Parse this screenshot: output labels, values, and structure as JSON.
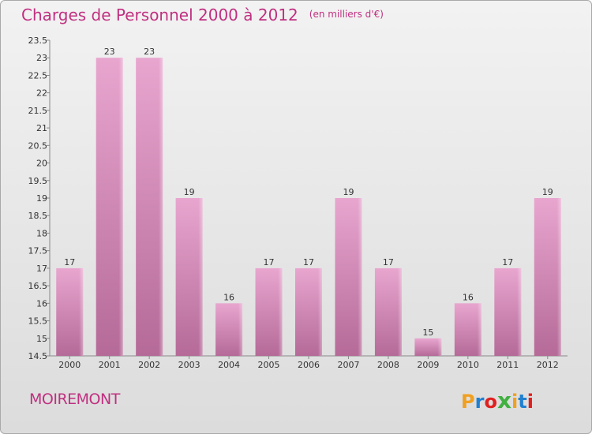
{
  "header": {
    "title": "Charges de Personnel 2000 à 2012",
    "unit": "(en milliers d'€)"
  },
  "footer": {
    "commune": "MOIREMONT",
    "logo": "Proxiti",
    "logo_colors": [
      "#f0a020",
      "#2080d0",
      "#e02020",
      "#40b040",
      "#f0a020",
      "#2080d0",
      "#e02020"
    ]
  },
  "colors": {
    "bar": "#d88ab8",
    "bar_light": "#e8a6cf",
    "text_accent": "#c03080"
  },
  "chart_data": {
    "type": "bar",
    "title": "Charges de Personnel 2000 à 2012",
    "subtitle": "(en milliers d'€)",
    "categories": [
      "2000",
      "2001",
      "2002",
      "2003",
      "2004",
      "2005",
      "2006",
      "2007",
      "2008",
      "2009",
      "2010",
      "2011",
      "2012"
    ],
    "values": [
      17,
      23,
      23,
      19,
      16,
      17,
      17,
      19,
      17,
      15,
      16,
      17,
      19
    ],
    "data_labels": [
      "17",
      "23",
      "23",
      "19",
      "16",
      "17",
      "17",
      "19",
      "17",
      "15",
      "16",
      "17",
      "19"
    ],
    "ylim": [
      14.5,
      23.5
    ],
    "yticks": [
      "14.5",
      "15",
      "15.5",
      "16",
      "16.5",
      "17",
      "17.5",
      "18",
      "18.5",
      "19",
      "19.5",
      "20",
      "20.5",
      "21",
      "21.5",
      "22",
      "22.5",
      "23",
      "23.5"
    ],
    "grid": false,
    "legend": "none"
  }
}
